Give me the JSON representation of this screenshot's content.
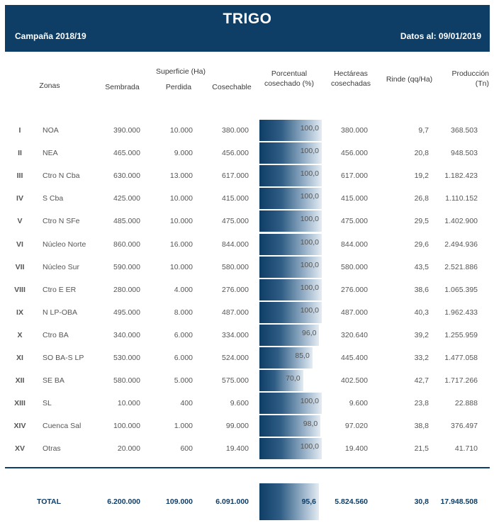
{
  "header": {
    "title": "TRIGO",
    "campaign": "Campaña 2018/19",
    "date": "Datos al: 09/01/2019"
  },
  "columns": {
    "zonas": "Zonas",
    "superficie": "Superficie (Ha)",
    "sembrada": "Sembrada",
    "perdida": "Perdida",
    "cosechable": "Cosechable",
    "porcentual_1": "Porcentual",
    "porcentual_2": "cosechado (%)",
    "hectareas_1": "Hectáreas",
    "hectareas_2": "cosechadas",
    "rinde": "Rinde (qq/Ha)",
    "produccion_1": "Producción",
    "produccion_2": "(Tn)"
  },
  "rows": [
    {
      "num": "I",
      "zona": "NOA",
      "sembrada": "390.000",
      "perdida": "10.000",
      "cosechable": "380.000",
      "pct": "100,0",
      "pct_value": 100,
      "hectareas": "380.000",
      "rinde": "9,7",
      "produccion": "368.503"
    },
    {
      "num": "II",
      "zona": "NEA",
      "sembrada": "465.000",
      "perdida": "9.000",
      "cosechable": "456.000",
      "pct": "100,0",
      "pct_value": 100,
      "hectareas": "456.000",
      "rinde": "20,8",
      "produccion": "948.503"
    },
    {
      "num": "III",
      "zona": "Ctro N Cba",
      "sembrada": "630.000",
      "perdida": "13.000",
      "cosechable": "617.000",
      "pct": "100,0",
      "pct_value": 100,
      "hectareas": "617.000",
      "rinde": "19,2",
      "produccion": "1.182.423"
    },
    {
      "num": "IV",
      "zona": "S Cba",
      "sembrada": "425.000",
      "perdida": "10.000",
      "cosechable": "415.000",
      "pct": "100,0",
      "pct_value": 100,
      "hectareas": "415.000",
      "rinde": "26,8",
      "produccion": "1.110.152"
    },
    {
      "num": "V",
      "zona": "Ctro N SFe",
      "sembrada": "485.000",
      "perdida": "10.000",
      "cosechable": "475.000",
      "pct": "100,0",
      "pct_value": 100,
      "hectareas": "475.000",
      "rinde": "29,5",
      "produccion": "1.402.900"
    },
    {
      "num": "VI",
      "zona": "Núcleo Norte",
      "sembrada": "860.000",
      "perdida": "16.000",
      "cosechable": "844.000",
      "pct": "100,0",
      "pct_value": 100,
      "hectareas": "844.000",
      "rinde": "29,6",
      "produccion": "2.494.936"
    },
    {
      "num": "VII",
      "zona": "Núcleo Sur",
      "sembrada": "590.000",
      "perdida": "10.000",
      "cosechable": "580.000",
      "pct": "100,0",
      "pct_value": 100,
      "hectareas": "580.000",
      "rinde": "43,5",
      "produccion": "2.521.886"
    },
    {
      "num": "VIII",
      "zona": "Ctro E ER",
      "sembrada": "280.000",
      "perdida": "4.000",
      "cosechable": "276.000",
      "pct": "100,0",
      "pct_value": 100,
      "hectareas": "276.000",
      "rinde": "38,6",
      "produccion": "1.065.395"
    },
    {
      "num": "IX",
      "zona": "N LP-OBA",
      "sembrada": "495.000",
      "perdida": "8.000",
      "cosechable": "487.000",
      "pct": "100,0",
      "pct_value": 100,
      "hectareas": "487.000",
      "rinde": "40,3",
      "produccion": "1.962.433"
    },
    {
      "num": "X",
      "zona": "Ctro BA",
      "sembrada": "340.000",
      "perdida": "6.000",
      "cosechable": "334.000",
      "pct": "96,0",
      "pct_value": 96,
      "hectareas": "320.640",
      "rinde": "39,2",
      "produccion": "1.255.959"
    },
    {
      "num": "XI",
      "zona": "SO BA-S LP",
      "sembrada": "530.000",
      "perdida": "6.000",
      "cosechable": "524.000",
      "pct": "85,0",
      "pct_value": 85,
      "hectareas": "445.400",
      "rinde": "33,2",
      "produccion": "1.477.058"
    },
    {
      "num": "XII",
      "zona": "SE BA",
      "sembrada": "580.000",
      "perdida": "5.000",
      "cosechable": "575.000",
      "pct": "70,0",
      "pct_value": 70,
      "hectareas": "402.500",
      "rinde": "42,7",
      "produccion": "1.717.266"
    },
    {
      "num": "XIII",
      "zona": "SL",
      "sembrada": "10.000",
      "perdida": "400",
      "cosechable": "9.600",
      "pct": "100,0",
      "pct_value": 100,
      "hectareas": "9.600",
      "rinde": "23,8",
      "produccion": "22.888"
    },
    {
      "num": "XIV",
      "zona": "Cuenca Sal",
      "sembrada": "100.000",
      "perdida": "1.000",
      "cosechable": "99.000",
      "pct": "98,0",
      "pct_value": 98,
      "hectareas": "97.020",
      "rinde": "38,8",
      "produccion": "376.497"
    },
    {
      "num": "XV",
      "zona": "Otras",
      "sembrada": "20.000",
      "perdida": "600",
      "cosechable": "19.400",
      "pct": "100,0",
      "pct_value": 100,
      "hectareas": "19.400",
      "rinde": "21,5",
      "produccion": "41.710"
    }
  ],
  "total": {
    "label": "TOTAL",
    "sembrada": "6.200.000",
    "perdida": "109.000",
    "cosechable": "6.091.000",
    "pct": "95,6",
    "hectareas": "5.824.560",
    "rinde": "30,8",
    "produccion": "17.948.508"
  },
  "colors": {
    "primary": "#0e3d66",
    "bar_light": "#e4ecf3"
  }
}
